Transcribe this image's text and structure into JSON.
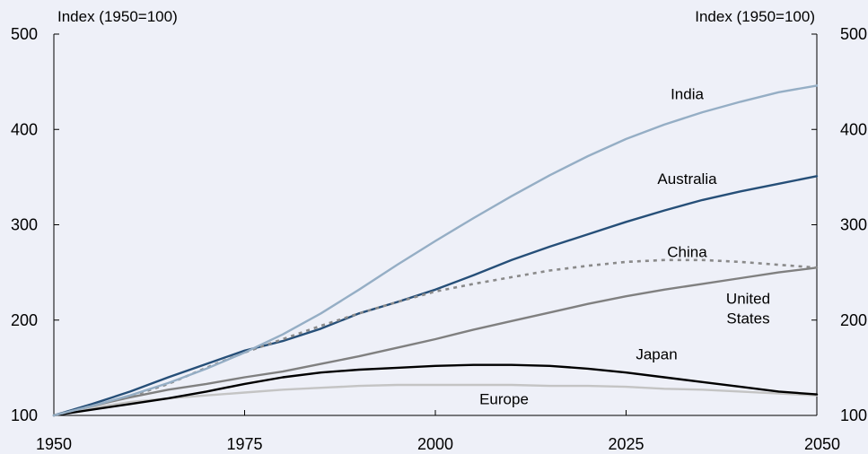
{
  "chart_data": {
    "type": "line",
    "y_unit_left": "Index (1950=100)",
    "y_unit_right": "Index (1950=100)",
    "xlim": [
      1950,
      2050
    ],
    "ylim": [
      100,
      500
    ],
    "x_ticks": [
      1950,
      1975,
      2000,
      2025,
      2050
    ],
    "y_ticks": [
      100,
      200,
      300,
      400,
      500
    ],
    "grid": false,
    "background_color": "#eef0f8",
    "series": [
      {
        "name": "India",
        "color": "#95aec5",
        "dashed": false,
        "x": [
          1950,
          1955,
          1960,
          1965,
          1970,
          1975,
          1980,
          1985,
          1990,
          1995,
          2000,
          2005,
          2010,
          2015,
          2020,
          2025,
          2030,
          2035,
          2040,
          2045,
          2050
        ],
        "y": [
          100,
          110,
          121,
          134,
          149,
          166,
          185,
          207,
          232,
          258,
          283,
          307,
          330,
          352,
          372,
          390,
          405,
          418,
          429,
          439,
          446
        ]
      },
      {
        "name": "Australia",
        "color": "#264f78",
        "dashed": false,
        "x": [
          1950,
          1955,
          1960,
          1965,
          1970,
          1975,
          1980,
          1985,
          1990,
          1995,
          2000,
          2005,
          2010,
          2015,
          2020,
          2025,
          2030,
          2035,
          2040,
          2045,
          2050
        ],
        "y": [
          100,
          112,
          125,
          140,
          154,
          168,
          178,
          191,
          207,
          219,
          232,
          247,
          263,
          277,
          290,
          303,
          315,
          326,
          335,
          343,
          351
        ]
      },
      {
        "name": "China",
        "color": "#8a8a8a",
        "dashed": true,
        "x": [
          1950,
          1955,
          1960,
          1965,
          1970,
          1975,
          1980,
          1985,
          1990,
          1995,
          2000,
          2005,
          2010,
          2015,
          2020,
          2025,
          2030,
          2035,
          2040,
          2045,
          2050
        ],
        "y": [
          100,
          110,
          120,
          133,
          150,
          166,
          180,
          194,
          207,
          219,
          230,
          238,
          245,
          252,
          257,
          261,
          263,
          263,
          261,
          258,
          255
        ]
      },
      {
        "name": "United States",
        "color": "#808080",
        "dashed": false,
        "x": [
          1950,
          1955,
          1960,
          1965,
          1970,
          1975,
          1980,
          1985,
          1990,
          1995,
          2000,
          2005,
          2010,
          2015,
          2020,
          2025,
          2030,
          2035,
          2040,
          2045,
          2050
        ],
        "y": [
          100,
          110,
          119,
          127,
          133,
          140,
          146,
          154,
          162,
          171,
          180,
          190,
          199,
          208,
          217,
          225,
          232,
          238,
          244,
          250,
          255
        ]
      },
      {
        "name": "Japan",
        "color": "#000000",
        "dashed": false,
        "x": [
          1950,
          1955,
          1960,
          1965,
          1970,
          1975,
          1980,
          1985,
          1990,
          1995,
          2000,
          2005,
          2010,
          2015,
          2020,
          2025,
          2030,
          2035,
          2040,
          2045,
          2050
        ],
        "y": [
          100,
          106,
          112,
          118,
          125,
          133,
          140,
          145,
          148,
          150,
          152,
          153,
          153,
          152,
          149,
          145,
          140,
          135,
          130,
          125,
          122
        ]
      },
      {
        "name": "Europe",
        "color": "#c4c4c4",
        "dashed": false,
        "x": [
          1950,
          1955,
          1960,
          1965,
          1970,
          1975,
          1980,
          1985,
          1990,
          1995,
          2000,
          2005,
          2010,
          2015,
          2020,
          2025,
          2030,
          2035,
          2040,
          2045,
          2050
        ],
        "y": [
          100,
          108,
          114,
          118,
          121,
          124,
          127,
          129,
          131,
          132,
          132,
          132,
          132,
          131,
          131,
          130,
          128,
          127,
          125,
          123,
          121
        ]
      }
    ],
    "annotations": [
      {
        "series": "India",
        "lines": [
          "India"
        ],
        "x": 2033,
        "y": 432
      },
      {
        "series": "Australia",
        "lines": [
          "Australia"
        ],
        "x": 2033,
        "y": 343
      },
      {
        "series": "China",
        "lines": [
          "China"
        ],
        "x": 2033,
        "y": 266
      },
      {
        "series": "United States",
        "lines": [
          "United",
          "States"
        ],
        "x": 2041,
        "y": 217
      },
      {
        "series": "Japan",
        "lines": [
          "Japan"
        ],
        "x": 2029,
        "y": 159
      },
      {
        "series": "Europe",
        "lines": [
          "Europe"
        ],
        "x": 2009,
        "y": 112
      }
    ]
  }
}
